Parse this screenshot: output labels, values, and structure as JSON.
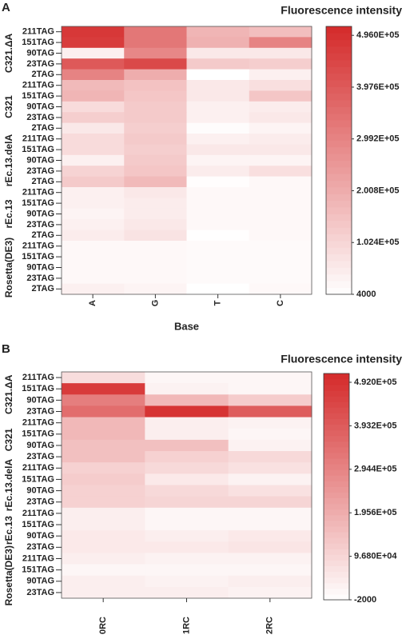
{
  "chart_data": [
    {
      "type": "heatmap",
      "panel_label": "A",
      "title": "Fluorescence intensity",
      "x_label": "Base",
      "categories": [
        "A",
        "G",
        "T",
        "C"
      ],
      "groups": [
        "C321.ΔA",
        "C321",
        "rEc.13.delA",
        "rEc.13",
        "Rosetta(DE3)"
      ],
      "rows": [
        "211TAG",
        "151TAG",
        "90TAG",
        "23TAG",
        "2TAG",
        "211TAG",
        "151TAG",
        "90TAG",
        "23TAG",
        "2TAG",
        "211TAG",
        "151TAG",
        "90TAG",
        "23TAG",
        "2TAG",
        "211TAG",
        "151TAG",
        "90TAG",
        "23TAG",
        "2TAG",
        "211TAG",
        "151TAG",
        "90TAG",
        "23TAG",
        "2TAG"
      ],
      "values": [
        [
          480000,
          330000,
          180000,
          160000
        ],
        [
          470000,
          330000,
          190000,
          300000
        ],
        [
          40000,
          290000,
          60000,
          60000
        ],
        [
          400000,
          440000,
          130000,
          120000
        ],
        [
          300000,
          200000,
          4000,
          40000
        ],
        [
          170000,
          150000,
          60000,
          80000
        ],
        [
          180000,
          140000,
          60000,
          140000
        ],
        [
          90000,
          130000,
          40000,
          50000
        ],
        [
          120000,
          130000,
          40000,
          60000
        ],
        [
          60000,
          120000,
          10000,
          30000
        ],
        [
          90000,
          130000,
          40000,
          50000
        ],
        [
          90000,
          120000,
          60000,
          60000
        ],
        [
          40000,
          130000,
          30000,
          30000
        ],
        [
          110000,
          140000,
          50000,
          80000
        ],
        [
          130000,
          170000,
          8000,
          20000
        ],
        [
          40000,
          60000,
          20000,
          20000
        ],
        [
          40000,
          50000,
          20000,
          20000
        ],
        [
          30000,
          50000,
          20000,
          20000
        ],
        [
          40000,
          60000,
          20000,
          20000
        ],
        [
          50000,
          70000,
          6000,
          20000
        ],
        [
          20000,
          20000,
          15000,
          15000
        ],
        [
          20000,
          20000,
          15000,
          15000
        ],
        [
          20000,
          20000,
          15000,
          15000
        ],
        [
          20000,
          20000,
          15000,
          15000
        ],
        [
          40000,
          30000,
          5000,
          20000
        ]
      ],
      "colors": [
        "#ffffff",
        "#d42a2a"
      ],
      "clim": [
        4000,
        513000
      ],
      "cticks": [
        4000,
        {
          "value": 102400,
          "label": "1.024E+05"
        },
        {
          "value": 200800,
          "label": "2.008E+05"
        },
        {
          "value": 299200,
          "label": "2.992E+05"
        },
        {
          "value": 397600,
          "label": "3.976E+05"
        },
        {
          "value": 496000,
          "label": "4.960E+05"
        }
      ]
    },
    {
      "type": "heatmap",
      "panel_label": "B",
      "title": "Fluorescence intensity",
      "categories": [
        "0RC",
        "1RC",
        "2RC"
      ],
      "groups": [
        "C321.ΔA",
        "C321",
        "rEc.13.delA",
        "rEc.13",
        "Rosetta(DE3)"
      ],
      "rows": [
        "211TAG",
        "151TAG",
        "90TAG",
        "23TAG",
        "211TAG",
        "151TAG",
        "90TAG",
        "23TAG",
        "211TAG",
        "151TAG",
        "90TAG",
        "23TAG",
        "211TAG",
        "151TAG",
        "90TAG",
        "23TAG",
        "211TAG",
        "151TAG",
        "90TAG",
        "23TAG"
      ],
      "values": [
        [
          80000,
          20000,
          20000
        ],
        [
          470000,
          30000,
          20000
        ],
        [
          310000,
          170000,
          120000
        ],
        [
          350000,
          490000,
          390000
        ],
        [
          170000,
          40000,
          30000
        ],
        [
          170000,
          40000,
          20000
        ],
        [
          150000,
          150000,
          30000
        ],
        [
          150000,
          110000,
          90000
        ],
        [
          110000,
          90000,
          70000
        ],
        [
          120000,
          50000,
          30000
        ],
        [
          110000,
          90000,
          70000
        ],
        [
          110000,
          100000,
          100000
        ],
        [
          40000,
          20000,
          20000
        ],
        [
          40000,
          20000,
          20000
        ],
        [
          50000,
          40000,
          50000
        ],
        [
          50000,
          50000,
          60000
        ],
        [
          40000,
          30000,
          30000
        ],
        [
          20000,
          20000,
          20000
        ],
        [
          40000,
          30000,
          40000
        ],
        [
          40000,
          40000,
          30000
        ]
      ],
      "colors": [
        "#ffffff",
        "#d42a2a"
      ],
      "clim": [
        -2000,
        512000
      ],
      "cticks": [
        -2000,
        {
          "value": 96800,
          "label": "9.680E+04"
        },
        {
          "value": 195600,
          "label": "1.956E+05"
        },
        {
          "value": 294400,
          "label": "2.944E+05"
        },
        {
          "value": 393200,
          "label": "3.932E+05"
        },
        {
          "value": 492000,
          "label": "4.920E+05"
        }
      ]
    }
  ]
}
